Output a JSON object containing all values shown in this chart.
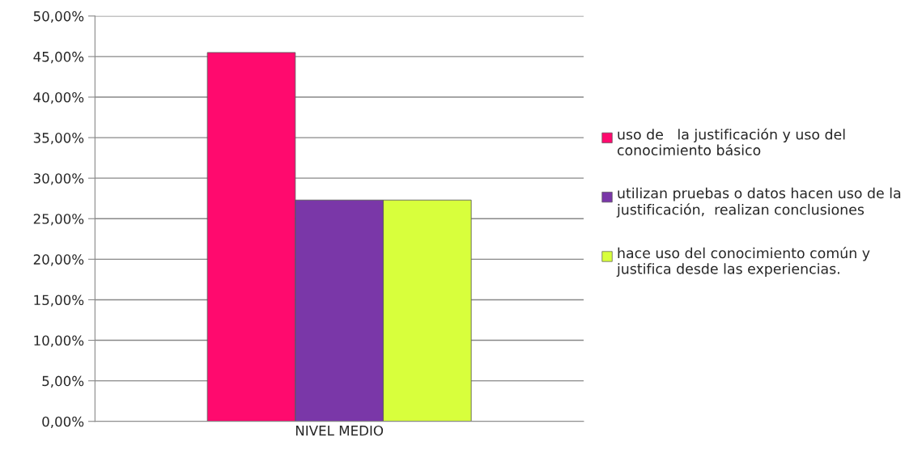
{
  "chart_data": {
    "type": "bar",
    "categories": [
      "NIVEL MEDIO"
    ],
    "series": [
      {
        "name": "uso de   la justificación y uso del conocimiento básico",
        "color": "#ff0a6e",
        "values": [
          45.5
        ]
      },
      {
        "name": "utilizan pruebas o datos hacen uso de la justificación,  realizan conclusiones",
        "color": "#7a37a8",
        "values": [
          27.3
        ]
      },
      {
        "name": "hace uso del conocimiento común y justifica desde las experiencias.",
        "color": "#d8ff3c",
        "values": [
          27.3
        ]
      }
    ],
    "ylim": [
      0,
      50
    ],
    "yticks": [
      {
        "value": 0,
        "label": "0,00%"
      },
      {
        "value": 5,
        "label": "5,00%"
      },
      {
        "value": 10,
        "label": "10,00%"
      },
      {
        "value": 15,
        "label": "15,00%"
      },
      {
        "value": 20,
        "label": "20,00%"
      },
      {
        "value": 25,
        "label": "25,00%"
      },
      {
        "value": 30,
        "label": "30,00%"
      },
      {
        "value": 35,
        "label": "35,00%"
      },
      {
        "value": 40,
        "label": "40,00%"
      },
      {
        "value": 45,
        "label": "45,00%"
      },
      {
        "value": 50,
        "label": "50,00%"
      }
    ],
    "grid": "y",
    "legend": "right"
  }
}
